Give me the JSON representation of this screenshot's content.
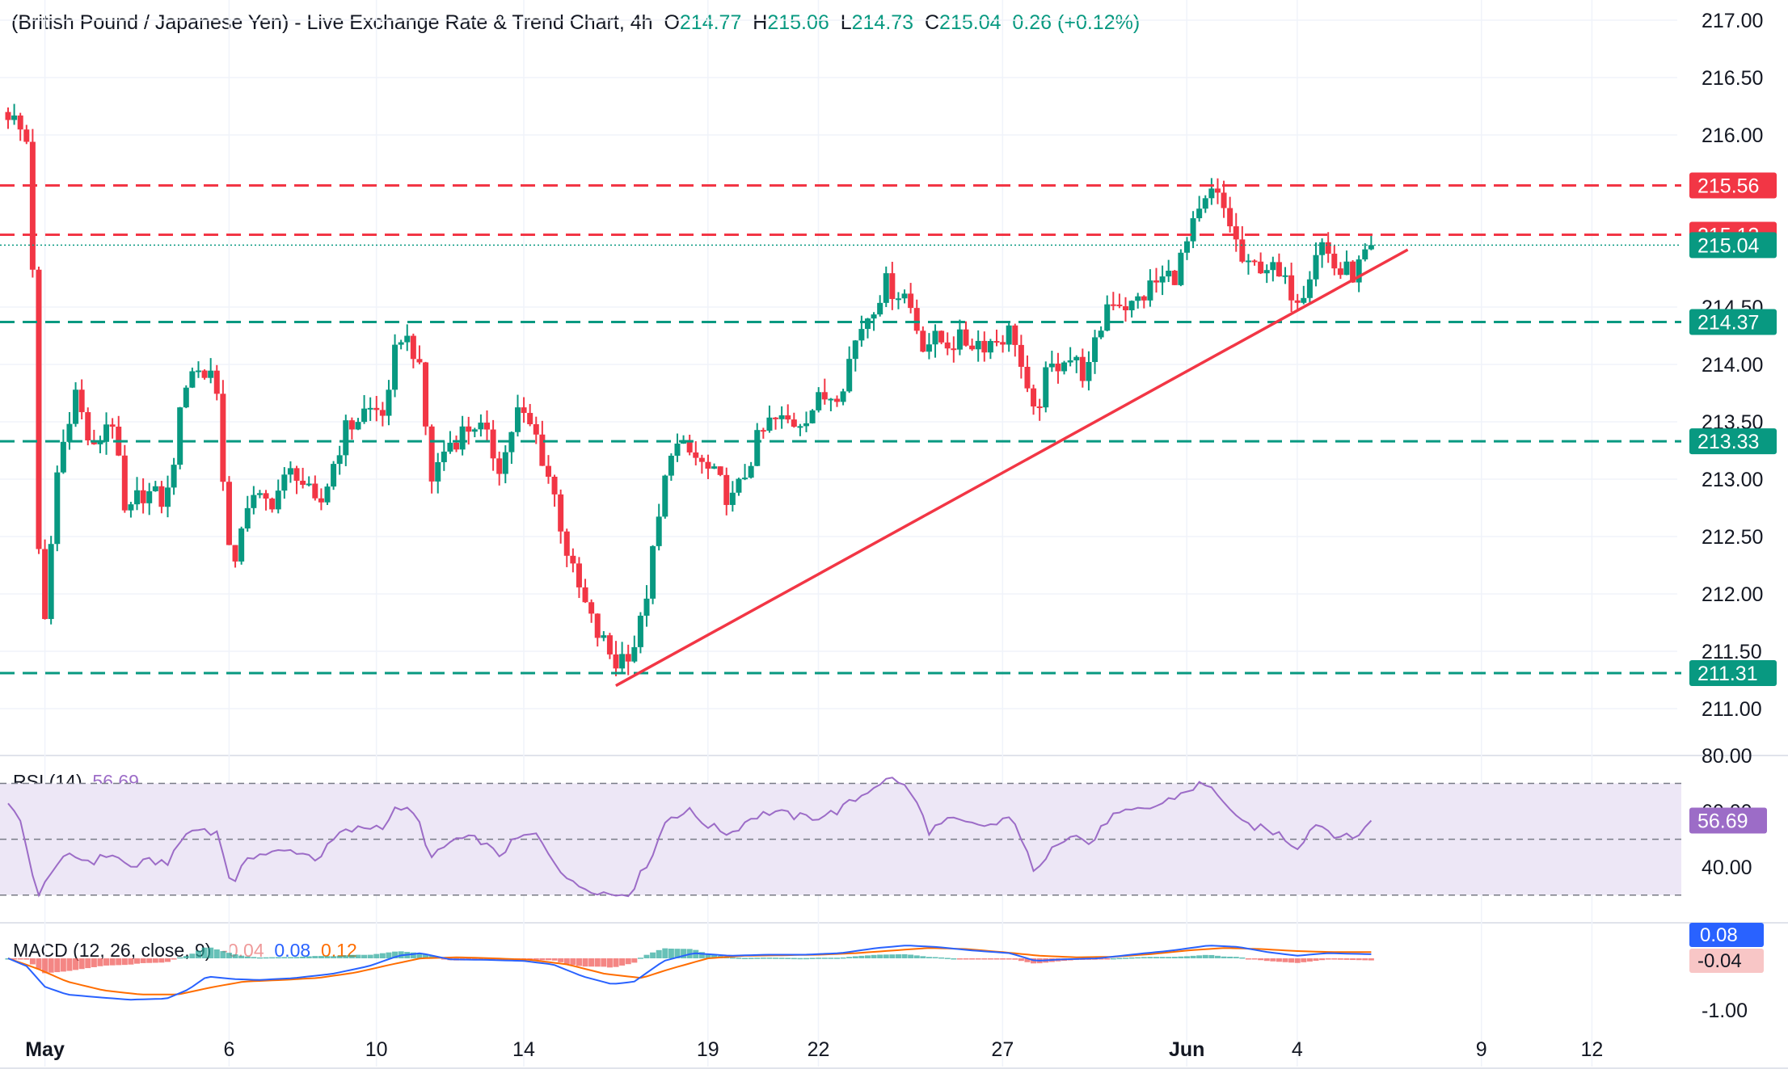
{
  "header": {
    "title": "(British Pound / Japanese Yen) - Live Exchange Rate & Trend Chart, 4h",
    "open_label": "O",
    "open": "214.77",
    "high_label": "H",
    "high": "215.06",
    "low_label": "L",
    "low": "214.73",
    "close_label": "C",
    "close": "215.04",
    "change": "0.26 (+0.12%)"
  },
  "colors": {
    "up": "#089981",
    "down": "#f23645",
    "trendline": "#f23645",
    "support": "#089981",
    "resistance": "#f23645",
    "rsi_line": "#9c6cc7",
    "rsi_band": "#ede7f6",
    "macd_line": "#2962ff",
    "signal_line": "#ff6d00",
    "hist_up": "#26a69a",
    "hist_down": "#ef5350"
  },
  "chart_data": [
    {
      "type": "candlestick",
      "timeframe": "4h",
      "ylim": [
        210.6,
        217.1
      ],
      "y_ticks": [
        "217.00",
        "216.50",
        "216.00",
        "214.50",
        "214.00",
        "213.50",
        "213.00",
        "212.50",
        "212.00",
        "211.50",
        "211.00"
      ],
      "x_ticks": [
        "May",
        "6",
        "10",
        "14",
        "19",
        "22",
        "27",
        "Jun",
        "4",
        "9",
        "12"
      ],
      "x_tick_days": [
        1,
        6,
        10,
        14,
        19,
        22,
        27,
        32,
        35,
        40,
        43
      ],
      "bar_days_per_candle": 0.1667,
      "last_price": "215.04",
      "levels": [
        {
          "value": 215.56,
          "label": "215.56",
          "kind": "resistance"
        },
        {
          "value": 215.13,
          "label": "215.13",
          "kind": "resistance"
        },
        {
          "value": 214.37,
          "label": "214.37",
          "kind": "support"
        },
        {
          "value": 213.33,
          "label": "213.33",
          "kind": "support"
        },
        {
          "value": 211.31,
          "label": "211.31",
          "kind": "support"
        }
      ],
      "trendline": {
        "start": [
          16.5,
          211.2
        ],
        "end": [
          38.0,
          215.0
        ]
      },
      "anchors": [
        [
          0.0,
          216.2
        ],
        [
          0.6,
          215.9
        ],
        [
          0.9,
          211.3
        ],
        [
          1.3,
          213.0
        ],
        [
          1.8,
          213.8
        ],
        [
          2.3,
          213.2
        ],
        [
          2.8,
          213.6
        ],
        [
          3.2,
          212.6
        ],
        [
          3.6,
          212.9
        ],
        [
          4.3,
          212.8
        ],
        [
          4.9,
          214.0
        ],
        [
          5.3,
          213.9
        ],
        [
          5.6,
          214.0
        ],
        [
          6.1,
          212.0
        ],
        [
          6.4,
          212.8
        ],
        [
          7.1,
          212.8
        ],
        [
          7.8,
          213.1
        ],
        [
          8.4,
          212.7
        ],
        [
          9.1,
          213.4
        ],
        [
          9.7,
          213.6
        ],
        [
          10.3,
          213.6
        ],
        [
          10.6,
          214.3
        ],
        [
          11.1,
          214.1
        ],
        [
          11.5,
          213.0
        ],
        [
          11.9,
          213.3
        ],
        [
          12.7,
          213.5
        ],
        [
          13.4,
          213.1
        ],
        [
          13.8,
          213.6
        ],
        [
          14.3,
          213.4
        ],
        [
          14.8,
          212.9
        ],
        [
          15.3,
          212.2
        ],
        [
          15.9,
          211.7
        ],
        [
          16.5,
          211.4
        ],
        [
          17.1,
          211.6
        ],
        [
          17.6,
          212.5
        ],
        [
          18.0,
          213.3
        ],
        [
          18.6,
          213.2
        ],
        [
          19.2,
          213.0
        ],
        [
          19.7,
          212.8
        ],
        [
          20.3,
          213.3
        ],
        [
          20.7,
          213.5
        ],
        [
          21.4,
          213.5
        ],
        [
          22.1,
          213.7
        ],
        [
          22.6,
          213.8
        ],
        [
          23.1,
          214.3
        ],
        [
          23.8,
          214.7
        ],
        [
          24.4,
          214.6
        ],
        [
          24.8,
          214.2
        ],
        [
          25.5,
          214.2
        ],
        [
          26.1,
          214.2
        ],
        [
          26.7,
          214.2
        ],
        [
          27.3,
          214.3
        ],
        [
          27.8,
          213.5
        ],
        [
          28.2,
          213.9
        ],
        [
          28.7,
          214.1
        ],
        [
          29.3,
          213.9
        ],
        [
          29.9,
          214.6
        ],
        [
          30.5,
          214.5
        ],
        [
          31.1,
          214.7
        ],
        [
          31.7,
          214.8
        ],
        [
          32.2,
          215.2
        ],
        [
          32.7,
          215.5
        ],
        [
          33.1,
          215.3
        ],
        [
          33.6,
          214.8
        ],
        [
          34.1,
          214.9
        ],
        [
          34.6,
          214.7
        ],
        [
          35.1,
          214.6
        ],
        [
          35.6,
          215.1
        ],
        [
          36.1,
          214.8
        ],
        [
          36.6,
          214.8
        ],
        [
          37.0,
          215.04
        ]
      ]
    },
    {
      "type": "line",
      "name": "RSI (14)",
      "current": "56.69",
      "ylim": [
        25,
        80
      ],
      "y_ticks": [
        "80.00",
        "60.00",
        "40.00"
      ],
      "overbought": 70,
      "oversold": 30,
      "middle": 50,
      "anchors": [
        [
          0.0,
          62
        ],
        [
          0.4,
          55
        ],
        [
          0.8,
          28
        ],
        [
          1.2,
          40
        ],
        [
          1.7,
          44
        ],
        [
          2.3,
          42
        ],
        [
          2.8,
          45
        ],
        [
          3.3,
          40
        ],
        [
          3.8,
          42
        ],
        [
          4.4,
          42
        ],
        [
          4.8,
          52
        ],
        [
          5.3,
          54
        ],
        [
          5.7,
          52
        ],
        [
          6.1,
          32
        ],
        [
          6.5,
          44
        ],
        [
          7.1,
          45
        ],
        [
          7.8,
          46
        ],
        [
          8.4,
          43
        ],
        [
          9.0,
          52
        ],
        [
          9.6,
          54
        ],
        [
          10.2,
          55
        ],
        [
          10.6,
          62
        ],
        [
          11.1,
          58
        ],
        [
          11.5,
          43
        ],
        [
          12.1,
          50
        ],
        [
          12.8,
          50
        ],
        [
          13.3,
          44
        ],
        [
          13.8,
          50
        ],
        [
          14.3,
          52
        ],
        [
          14.8,
          43
        ],
        [
          15.3,
          34
        ],
        [
          15.9,
          32
        ],
        [
          16.4,
          30
        ],
        [
          16.9,
          31
        ],
        [
          17.5,
          45
        ],
        [
          17.9,
          58
        ],
        [
          18.5,
          60
        ],
        [
          19.0,
          55
        ],
        [
          19.6,
          52
        ],
        [
          20.2,
          58
        ],
        [
          20.8,
          60
        ],
        [
          21.4,
          58
        ],
        [
          22.0,
          58
        ],
        [
          22.5,
          60
        ],
        [
          23.1,
          65
        ],
        [
          23.6,
          70
        ],
        [
          24.1,
          72
        ],
        [
          24.6,
          65
        ],
        [
          25.0,
          53
        ],
        [
          25.6,
          57
        ],
        [
          26.2,
          55
        ],
        [
          26.8,
          55
        ],
        [
          27.3,
          58
        ],
        [
          27.9,
          36
        ],
        [
          28.3,
          48
        ],
        [
          28.9,
          52
        ],
        [
          29.4,
          48
        ],
        [
          29.9,
          58
        ],
        [
          30.6,
          60
        ],
        [
          31.2,
          62
        ],
        [
          31.8,
          66
        ],
        [
          32.4,
          70
        ],
        [
          32.9,
          66
        ],
        [
          33.4,
          56
        ],
        [
          34.0,
          54
        ],
        [
          34.5,
          52
        ],
        [
          35.0,
          47
        ],
        [
          35.5,
          56
        ],
        [
          36.0,
          52
        ],
        [
          36.5,
          50
        ],
        [
          37.0,
          56.69
        ]
      ]
    },
    {
      "type": "macd",
      "name": "MACD (12, 26, close, 9)",
      "histogram": "-0.04",
      "macd": "0.08",
      "signal": "0.12",
      "ylim": [
        -1.15,
        0.3
      ],
      "y_ticks": [
        "-1.00"
      ],
      "macd_line": [
        [
          0.0,
          0.0
        ],
        [
          0.5,
          -0.15
        ],
        [
          1.0,
          -0.55
        ],
        [
          1.6,
          -0.7
        ],
        [
          2.4,
          -0.75
        ],
        [
          3.3,
          -0.8
        ],
        [
          4.3,
          -0.78
        ],
        [
          4.9,
          -0.6
        ],
        [
          5.4,
          -0.35
        ],
        [
          6.1,
          -0.4
        ],
        [
          6.8,
          -0.42
        ],
        [
          7.8,
          -0.38
        ],
        [
          8.8,
          -0.3
        ],
        [
          9.8,
          -0.15
        ],
        [
          10.6,
          0.05
        ],
        [
          11.2,
          0.1
        ],
        [
          12.0,
          -0.02
        ],
        [
          13.0,
          -0.03
        ],
        [
          14.0,
          -0.05
        ],
        [
          14.8,
          -0.12
        ],
        [
          15.6,
          -0.35
        ],
        [
          16.4,
          -0.5
        ],
        [
          17.0,
          -0.45
        ],
        [
          17.8,
          -0.05
        ],
        [
          18.6,
          0.1
        ],
        [
          19.6,
          0.05
        ],
        [
          20.6,
          0.07
        ],
        [
          21.6,
          0.07
        ],
        [
          22.6,
          0.1
        ],
        [
          23.6,
          0.2
        ],
        [
          24.4,
          0.25
        ],
        [
          25.2,
          0.22
        ],
        [
          26.2,
          0.15
        ],
        [
          27.2,
          0.1
        ],
        [
          27.9,
          -0.05
        ],
        [
          28.6,
          -0.02
        ],
        [
          29.6,
          0.0
        ],
        [
          30.6,
          0.08
        ],
        [
          31.6,
          0.15
        ],
        [
          32.6,
          0.25
        ],
        [
          33.4,
          0.22
        ],
        [
          34.2,
          0.12
        ],
        [
          35.0,
          0.05
        ],
        [
          35.8,
          0.1
        ],
        [
          37.0,
          0.08
        ]
      ],
      "signal_line": [
        [
          0.0,
          0.0
        ],
        [
          0.8,
          -0.2
        ],
        [
          1.6,
          -0.45
        ],
        [
          2.6,
          -0.62
        ],
        [
          3.6,
          -0.7
        ],
        [
          4.6,
          -0.7
        ],
        [
          5.6,
          -0.55
        ],
        [
          6.4,
          -0.45
        ],
        [
          7.4,
          -0.42
        ],
        [
          8.4,
          -0.38
        ],
        [
          9.4,
          -0.28
        ],
        [
          10.4,
          -0.12
        ],
        [
          11.2,
          0.0
        ],
        [
          12.2,
          0.02
        ],
        [
          13.2,
          0.0
        ],
        [
          14.2,
          -0.03
        ],
        [
          15.2,
          -0.12
        ],
        [
          16.2,
          -0.3
        ],
        [
          17.2,
          -0.38
        ],
        [
          18.0,
          -0.2
        ],
        [
          19.0,
          0.0
        ],
        [
          20.0,
          0.05
        ],
        [
          21.0,
          0.06
        ],
        [
          22.0,
          0.07
        ],
        [
          23.0,
          0.1
        ],
        [
          24.0,
          0.15
        ],
        [
          25.0,
          0.2
        ],
        [
          26.0,
          0.18
        ],
        [
          27.0,
          0.12
        ],
        [
          28.0,
          0.05
        ],
        [
          29.0,
          0.02
        ],
        [
          30.0,
          0.03
        ],
        [
          31.0,
          0.08
        ],
        [
          32.0,
          0.15
        ],
        [
          33.0,
          0.2
        ],
        [
          34.0,
          0.18
        ],
        [
          35.0,
          0.14
        ],
        [
          36.0,
          0.12
        ],
        [
          37.0,
          0.12
        ]
      ]
    }
  ]
}
